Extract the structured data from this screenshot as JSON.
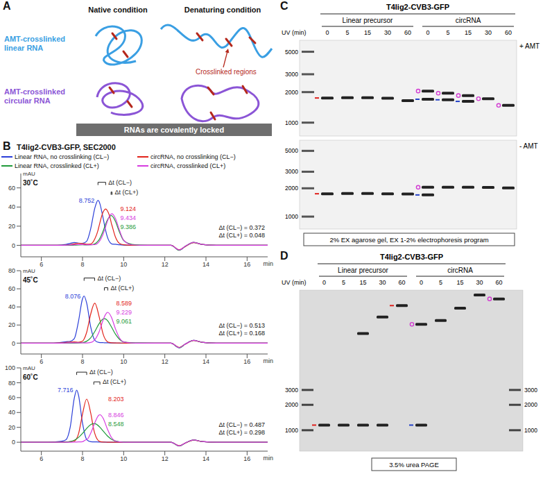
{
  "chart_data": [
    {
      "type": "line",
      "title": "30˚C",
      "x_label": "min",
      "y_label": "mAU",
      "legend": "top",
      "x": [
        5,
        6,
        6.6,
        7,
        7.2,
        7.4,
        7.6,
        7.8,
        8,
        8.2,
        8.4,
        8.6,
        8.752,
        8.8,
        9,
        9.124,
        9.2,
        9.386,
        9.4,
        9.434,
        9.6,
        9.8,
        10,
        10.4,
        10.8,
        11.5,
        12.3,
        12.7,
        13,
        13.4,
        13.8,
        14.5,
        16,
        17
      ],
      "xlim": [
        5,
        17
      ],
      "xticks": [
        6,
        8,
        10,
        12,
        14,
        16
      ],
      "ylim": [
        -12,
        75
      ],
      "yticks": [
        0,
        20,
        40,
        60
      ],
      "series": [
        {
          "name": "Linear RNA, no crosslinking (CL−)",
          "color": "#2a3ed8",
          "peak_time": 8.752,
          "values": [
            0,
            0,
            0,
            0.5,
            1,
            2,
            3,
            2.2,
            2,
            4.2,
            17.6,
            39,
            47,
            46,
            28.5,
            15.5,
            9.3,
            1.9,
            1.7,
            1.3,
            1.1,
            0.6,
            0.3,
            0,
            0,
            0,
            0,
            -5,
            -1,
            3,
            1,
            0,
            0,
            0
          ]
        },
        {
          "name": "circRNA, no crosslinking (CL−)",
          "color": "#e2231a",
          "peak_time": 9.124,
          "values": [
            0,
            0,
            0,
            0,
            0.3,
            0.8,
            1.5,
            2,
            1.8,
            1.2,
            1.4,
            6.8,
            15.7,
            19.8,
            34.7,
            38,
            36.4,
            24.5,
            23,
            20.6,
            8.7,
            2,
            0.6,
            0.1,
            0,
            0,
            0,
            -4.6,
            -1.2,
            2.8,
            0.9,
            0,
            0,
            0
          ]
        },
        {
          "name": "Linear RNA, crosslinked (CL+)",
          "color": "#1f9a3a",
          "peak_time": 9.386,
          "values": [
            0,
            0,
            0,
            0,
            0,
            0,
            0.2,
            0.4,
            0.5,
            0.4,
            0.5,
            1.5,
            4.4,
            5.7,
            14.8,
            22.2,
            26,
            31,
            31,
            30.7,
            25,
            13.6,
            5,
            1,
            0.3,
            0,
            0,
            -5.3,
            -1,
            3.2,
            1,
            0,
            0,
            0
          ]
        },
        {
          "name": "circRNA, crosslinked (CL+)",
          "color": "#d63be0",
          "peak_time": 9.434,
          "values": [
            0,
            0,
            0,
            0,
            0.2,
            0.4,
            0.6,
            0.8,
            0.8,
            0.6,
            0.6,
            0.7,
            2.5,
            3.6,
            11.8,
            19.3,
            24.5,
            32.6,
            32.8,
            33,
            28,
            15.5,
            5.4,
            0.5,
            0.1,
            0,
            0,
            -4.9,
            -0.8,
            3.1,
            1,
            0,
            0,
            0
          ]
        }
      ],
      "annotations": [
        {
          "label": "Δt (CL−)",
          "value": 0.372,
          "value_label": "Δt (CL−) = 0.372",
          "from": "Linear RNA, no crosslinking (CL−)"
        },
        {
          "label": "Δt (CL+)",
          "value": 0.048,
          "value_label": "Δt (CL+) = 0.048",
          "from": "Linear RNA, crosslinked (CL+)"
        }
      ]
    },
    {
      "type": "line",
      "title": "45˚C",
      "x_label": "min",
      "y_label": "mAU",
      "x": [
        5,
        6,
        6.6,
        7,
        7.2,
        7.4,
        7.6,
        7.8,
        8,
        8.076,
        8.2,
        8.4,
        8.589,
        8.6,
        8.8,
        9,
        9.061,
        9.2,
        9.229,
        9.4,
        9.6,
        9.8,
        10,
        10.4,
        10.8,
        11.5,
        12.3,
        12.7,
        13,
        13.4,
        13.8,
        14.5,
        16,
        17
      ],
      "xlim": [
        5,
        17
      ],
      "xticks": [
        6,
        8,
        10,
        12,
        14,
        16
      ],
      "ylim": [
        -12,
        80
      ],
      "yticks": [
        0,
        20,
        40,
        60,
        80
      ],
      "series": [
        {
          "name": "Linear RNA, no crosslinking (CL−)",
          "color": "#2a3ed8",
          "peak_time": 8.076,
          "values": [
            0,
            0,
            0,
            1,
            1.5,
            2,
            5,
            23.6,
            49,
            52,
            44.4,
            17.6,
            3.4,
            3.1,
            0.8,
            0.5,
            0.4,
            0.3,
            0.3,
            0.2,
            0.1,
            0,
            0,
            0,
            0,
            0,
            0,
            -5.2,
            -1,
            3,
            1,
            0,
            0,
            0
          ]
        },
        {
          "name": "circRNA, no crosslinking (CL−)",
          "color": "#e2231a",
          "peak_time": 8.589,
          "values": [
            0,
            0,
            0,
            0.3,
            0.8,
            1.2,
            1.3,
            1,
            2.2,
            4.5,
            11.8,
            32.3,
            44,
            44,
            29.9,
            10.1,
            6.3,
            1.7,
            1.2,
            0.4,
            0.2,
            0.1,
            0,
            0,
            0,
            0,
            0,
            -4.8,
            -1.1,
            2.9,
            0.9,
            0,
            0,
            0
          ]
        },
        {
          "name": "Linear RNA, crosslinked (CL+)",
          "color": "#1f9a3a",
          "peak_time": 9.061,
          "values": [
            0,
            0,
            0,
            0,
            0,
            0,
            0,
            0.1,
            0.5,
            0.9,
            2.1,
            6,
            12.5,
            12.9,
            21.3,
            26.7,
            27,
            25.3,
            24.5,
            18.1,
            9.9,
            4.1,
            1.3,
            0.3,
            0.1,
            0,
            0,
            -5.1,
            -0.9,
            3.1,
            1,
            0,
            0,
            0
          ]
        },
        {
          "name": "circRNA, crosslinked (CL+)",
          "color": "#d63be0",
          "peak_time": 9.229,
          "values": [
            0,
            0,
            0,
            0,
            0.2,
            0.3,
            0.3,
            0.3,
            0.3,
            0.2,
            0.1,
            0.7,
            3.5,
            3.8,
            12.2,
            25.4,
            29,
            33.8,
            34,
            28.9,
            15.8,
            5.6,
            1.3,
            0.2,
            0,
            0,
            0,
            -4.9,
            -1,
            3,
            1,
            0,
            0,
            0
          ]
        }
      ],
      "annotations": [
        {
          "label": "Δt (CL−)",
          "value": 0.513,
          "value_label": "Δt (CL−) = 0.513",
          "from": "Linear RNA, no crosslinking (CL−)"
        },
        {
          "label": "Δt (CL+)",
          "value": 0.168,
          "value_label": "Δt (CL+) = 0.168",
          "from": "Linear RNA, crosslinked (CL+)"
        }
      ]
    },
    {
      "type": "line",
      "title": "60˚C",
      "x_label": "min",
      "y_label": "mAU",
      "x": [
        5,
        6,
        6.6,
        7,
        7.2,
        7.4,
        7.6,
        7.716,
        7.8,
        8,
        8.2,
        8.203,
        8.4,
        8.548,
        8.6,
        8.8,
        8.846,
        9,
        9.2,
        9.4,
        9.6,
        9.8,
        10,
        10.4,
        10.8,
        11.5,
        12.3,
        12.7,
        13,
        13.4,
        13.8,
        14.5,
        16,
        17
      ],
      "xlim": [
        5,
        17
      ],
      "xticks": [
        6,
        8,
        10,
        12,
        14,
        16
      ],
      "ylim": [
        -12,
        100
      ],
      "yticks": [
        0,
        20,
        40,
        60,
        80,
        100
      ],
      "series": [
        {
          "name": "Linear RNA, no crosslinking (CL−)",
          "color": "#2a3ed8",
          "peak_time": 7.716,
          "values": [
            0,
            0,
            0.5,
            1.5,
            3.5,
            20,
            59.2,
            70,
            64,
            25.6,
            3.7,
            3.6,
            0.7,
            0.5,
            0.5,
            0.3,
            0.3,
            0.2,
            0.1,
            0,
            0,
            0,
            0,
            0,
            0,
            0,
            0,
            -5,
            -1,
            3,
            1,
            0,
            0,
            0
          ]
        },
        {
          "name": "circRNA, no crosslinking (CL−)",
          "color": "#e2231a",
          "peak_time": 8.203,
          "values": [
            0,
            0,
            0,
            0.3,
            0.5,
            0.7,
            1.3,
            5,
            10.8,
            37.9,
            58,
            58,
            38.9,
            16.9,
            11.4,
            1.5,
            1,
            0.3,
            0.1,
            0,
            0,
            0,
            0,
            0,
            0,
            0,
            0,
            -4.7,
            -1.2,
            2.8,
            0.9,
            0,
            0,
            0
          ]
        },
        {
          "name": "Linear RNA, crosslinked (CL+)",
          "color": "#1f9a3a",
          "peak_time": 8.548,
          "values": [
            0,
            0,
            0,
            0.1,
            0.3,
            1,
            2.7,
            4.5,
            6.3,
            11.9,
            18.5,
            18.6,
            23.7,
            25,
            24.9,
            21.4,
            20.1,
            15.1,
            8.8,
            4.2,
            1.6,
            0.6,
            0.3,
            0.1,
            0,
            0,
            0,
            -5.2,
            -1,
            3.1,
            1,
            0,
            0,
            0
          ]
        },
        {
          "name": "circRNA, crosslinked (CL+)",
          "color": "#d63be0",
          "peak_time": 8.846,
          "values": [
            0,
            0,
            0,
            0,
            0,
            0.1,
            0.2,
            0.3,
            0.4,
            0.7,
            3.6,
            3.6,
            12.3,
            22.7,
            26.4,
            36.6,
            37,
            32.4,
            18.4,
            6.7,
            1.6,
            0.4,
            0.1,
            0,
            0,
            0,
            0,
            -4.9,
            -0.9,
            3,
            1,
            0,
            0,
            0
          ]
        }
      ],
      "annotations": [
        {
          "label": "Δt (CL−)",
          "value": 0.487,
          "value_label": "Δt (CL−) = 0.487",
          "from": "Linear RNA, no crosslinking (CL−)"
        },
        {
          "label": "Δt (CL+)",
          "value": 0.298,
          "value_label": "Δt (CL+) = 0.298",
          "from": "Linear RNA, crosslinked (CL+)"
        }
      ]
    }
  ],
  "figure": {
    "A": {
      "letter": "A",
      "columns": [
        "Native condition",
        "Denaturing condition"
      ],
      "rows": [
        {
          "label": "AMT-crosslinked linear RNA",
          "color": "#3a9fe3"
        },
        {
          "label": "AMT-crosslinked circular RNA",
          "color": "#8b55d6"
        }
      ],
      "callout": {
        "label": "Crosslinked regions",
        "color": "#b5281c"
      },
      "banner": "RNAs are covalently locked"
    },
    "B": {
      "letter": "B",
      "title": "T4lig2-CVB3-GFP, SEC2000"
    },
    "C": {
      "letter": "C",
      "title": "T4lig2-CVB3-GFP",
      "groups": [
        "Linear precursor",
        "circRNA"
      ],
      "lane_label": "UV (min)",
      "uv": [
        0,
        5,
        15,
        30,
        60
      ],
      "ladder": [
        5000,
        3000,
        2000,
        1000
      ],
      "gels": [
        {
          "label": "+ AMT",
          "lanes": [
            [
              [
                {
                  "size": 1750,
                  "marker": "dash",
                  "color": "#e0201c"
                }
              ],
              [
                {
                  "size": 1760
                }
              ],
              [
                {
                  "size": 1760
                }
              ],
              [
                {
                  "size": 1740
                }
              ],
              [
                {
                  "size": 1650
                }
              ]
            ],
            [
              [
                {
                  "size": 2050,
                  "marker": "circle",
                  "color": "#d23ad2"
                },
                {
                  "size": 1700,
                  "marker": "dash",
                  "color": "#2442c8"
                }
              ],
              [
                {
                  "size": 1950,
                  "marker": "circle",
                  "color": "#d23ad2"
                },
                {
                  "size": 1680,
                  "marker": "dash",
                  "color": "#2442c8"
                }
              ],
              [
                {
                  "size": 1850,
                  "marker": "circle",
                  "color": "#d23ad2"
                },
                {
                  "size": 1620,
                  "marker": "dash",
                  "color": "#2442c8"
                }
              ],
              [
                {
                  "size": 1720,
                  "marker": "circle",
                  "color": "#d23ad2"
                }
              ],
              [
                {
                  "size": 1480,
                  "marker": "circle",
                  "color": "#d23ad2"
                }
              ]
            ]
          ]
        },
        {
          "label": "- AMT",
          "lanes": [
            [
              [
                {
                  "size": 1750,
                  "marker": "dash",
                  "color": "#e0201c"
                }
              ],
              [
                {
                  "size": 1760
                }
              ],
              [
                {
                  "size": 1760
                }
              ],
              [
                {
                  "size": 1750
                }
              ],
              [
                {
                  "size": 1740
                }
              ]
            ],
            [
              [
                {
                  "size": 2050,
                  "marker": "circle",
                  "color": "#d23ad2"
                },
                {
                  "size": 1700,
                  "marker": "dash",
                  "color": "#2442c8"
                }
              ],
              [
                {
                  "size": 2050
                }
              ],
              [
                {
                  "size": 2050
                }
              ],
              [
                {
                  "size": 2040
                }
              ],
              [
                {
                  "size": 2020
                }
              ]
            ]
          ]
        }
      ],
      "caption": "2% EX agarose gel, EX 1-2% electrophoresis program"
    },
    "D": {
      "letter": "D",
      "title": "T4lig2-CVB3-GFP",
      "groups": [
        "Linear precursor",
        "circRNA"
      ],
      "lane_label": "UV (min)",
      "uv": [
        0,
        5,
        15,
        30,
        60
      ],
      "ladder": [
        3000,
        2000,
        1000
      ],
      "lanes": [
        [
          [
            {
              "size": 1150,
              "marker": "dash",
              "color": "#e0201c"
            }
          ],
          [
            {
              "size": 1150
            }
          ],
          [
            {
              "size": 1150
            },
            {
              "size": 14000
            }
          ],
          [
            {
              "size": 1150
            },
            {
              "size": 22000
            }
          ],
          [
            {
              "size": 30000,
              "marker": "dash",
              "color": "#e0201c"
            }
          ]
        ],
        [
          [
            {
              "size": 18000,
              "marker": "circle",
              "color": "#d23ad2"
            },
            {
              "size": 1150,
              "marker": "dash",
              "color": "#2442c8"
            }
          ],
          [
            {
              "size": 20000
            }
          ],
          [
            {
              "size": 28000
            }
          ],
          [
            {
              "size": 40000
            }
          ],
          [
            {
              "size": 36000,
              "marker": "circle",
              "color": "#d23ad2"
            }
          ]
        ]
      ],
      "caption": "3.5% urea PAGE"
    }
  }
}
